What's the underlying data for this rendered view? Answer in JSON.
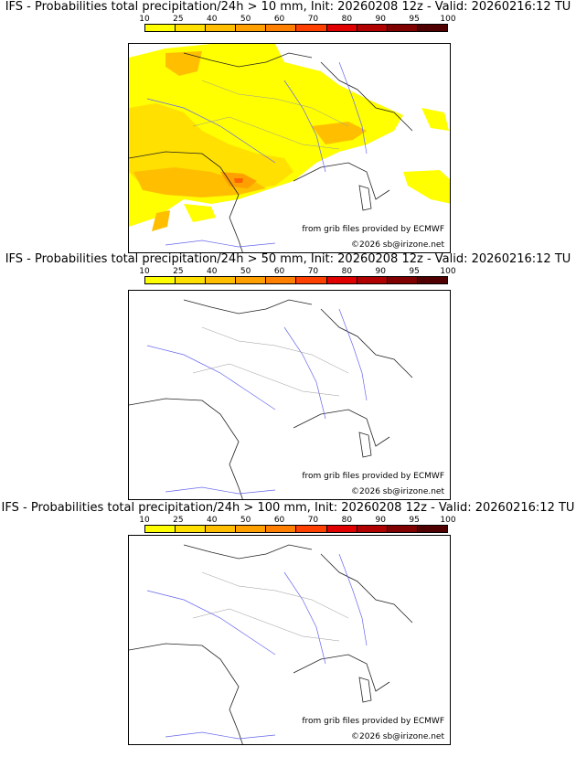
{
  "legend": {
    "ticks": [
      "10",
      "25",
      "40",
      "50",
      "60",
      "70",
      "80",
      "90",
      "95",
      "100"
    ],
    "colors": [
      "#ffff00",
      "#ffe000",
      "#ffbf00",
      "#ff9f00",
      "#ff7f00",
      "#ff4000",
      "#e00000",
      "#b00000",
      "#800000",
      "#500000"
    ]
  },
  "panels": [
    {
      "title": "IFS - Probabilities total precipitation/24h > 10 mm, Init: 20260208 12z - Valid: 20260216:12 TU",
      "source": "from grib files provided by ECMWF",
      "copyright": "©2026 sb@irizone.net"
    },
    {
      "title": "IFS - Probabilities total precipitation/24h > 50 mm, Init: 20260208 12z - Valid: 20260216:12 TU",
      "source": "from grib files provided by ECMWF",
      "copyright": "©2026 sb@irizone.net"
    },
    {
      "title": "IFS - Probabilities total precipitation/24h > 100 mm, Init: 20260208 12z - Valid: 20260216:12 TU",
      "source": "from grib files provided by ECMWF",
      "copyright": "©2026 sb@irizone.net"
    }
  ]
}
